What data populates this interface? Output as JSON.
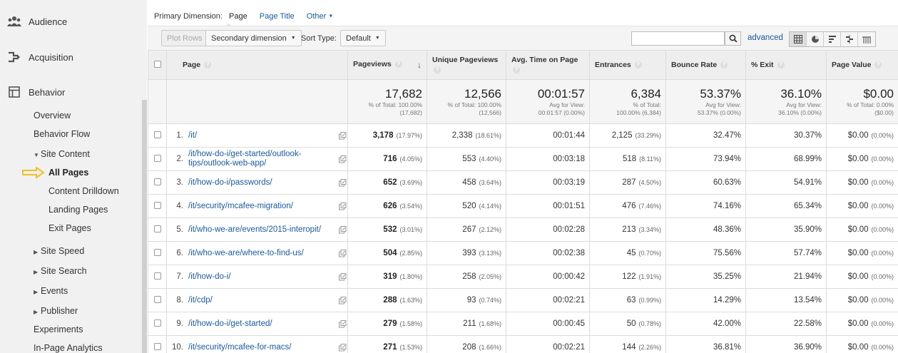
{
  "sidebar": {
    "audience": "Audience",
    "acquisition": "Acquisition",
    "behavior": "Behavior",
    "overview": "Overview",
    "behavior_flow": "Behavior Flow",
    "site_content": "Site Content",
    "all_pages": "All Pages",
    "content_drilldown": "Content Drilldown",
    "landing_pages": "Landing Pages",
    "exit_pages": "Exit Pages",
    "site_speed": "Site Speed",
    "site_search": "Site Search",
    "events": "Events",
    "publisher": "Publisher",
    "experiments": "Experiments",
    "in_page_analytics": "In-Page Analytics"
  },
  "dimension_bar": {
    "label": "Primary Dimension:",
    "current": "Page",
    "page_title": "Page Title",
    "other": "Other"
  },
  "toolbar": {
    "plot_rows": "Plot Rows",
    "secondary_dimension": "Secondary dimension",
    "sort_type_label": "Sort Type:",
    "sort_type_value": "Default",
    "search_value": "",
    "advanced": "advanced"
  },
  "table": {
    "headers": {
      "page": "Page",
      "pageviews": "Pageviews",
      "unique_pageviews": "Unique Pageviews",
      "avg_time": "Avg. Time on Page",
      "entrances": "Entrances",
      "bounce_rate": "Bounce Rate",
      "exit": "% Exit",
      "page_value": "Page Value"
    },
    "totals": {
      "pageviews": {
        "big": "17,682",
        "l1": "% of Total: 100.00%",
        "l2": "(17,682)"
      },
      "unique_pageviews": {
        "big": "12,566",
        "l1": "% of Total: 100.00%",
        "l2": "(12,566)"
      },
      "avg_time": {
        "big": "00:01:57",
        "l1": "Avg for View:",
        "l2": "00:01:57 (0.00%)"
      },
      "entrances": {
        "big": "6,384",
        "l1": "% of Total:",
        "l2": "100.00% (6,384)"
      },
      "bounce_rate": {
        "big": "53.37%",
        "l1": "Avg for View:",
        "l2": "53.37% (0.00%)"
      },
      "exit": {
        "big": "36.10%",
        "l1": "Avg for View:",
        "l2": "36.10% (0.00%)"
      },
      "page_value": {
        "big": "$0.00",
        "l1": "% of Total: 0.00%",
        "l2": "($0.00)"
      }
    },
    "rows": [
      {
        "rank": "1.",
        "page": "/it/",
        "pv": "3,178",
        "pv_pct": "(17.97%)",
        "upv": "2,338",
        "upv_pct": "(18.61%)",
        "time": "00:01:44",
        "ent": "2,125",
        "ent_pct": "(33.29%)",
        "bounce": "32.47%",
        "exit": "30.37%",
        "value": "$0.00",
        "value_pct": "(0.00%)"
      },
      {
        "rank": "2.",
        "page": "/it/how-do-i/get-started/outlook-tips/outlook-web-app/",
        "pv": "716",
        "pv_pct": "(4.05%)",
        "upv": "553",
        "upv_pct": "(4.40%)",
        "time": "00:03:18",
        "ent": "518",
        "ent_pct": "(8.11%)",
        "bounce": "73.94%",
        "exit": "68.99%",
        "value": "$0.00",
        "value_pct": "(0.00%)"
      },
      {
        "rank": "3.",
        "page": "/it/how-do-i/passwords/",
        "pv": "652",
        "pv_pct": "(3.69%)",
        "upv": "458",
        "upv_pct": "(3.64%)",
        "time": "00:03:19",
        "ent": "287",
        "ent_pct": "(4.50%)",
        "bounce": "60.63%",
        "exit": "54.91%",
        "value": "$0.00",
        "value_pct": "(0.00%)"
      },
      {
        "rank": "4.",
        "page": "/it/security/mcafee-migration/",
        "pv": "626",
        "pv_pct": "(3.54%)",
        "upv": "520",
        "upv_pct": "(4.14%)",
        "time": "00:01:51",
        "ent": "476",
        "ent_pct": "(7.46%)",
        "bounce": "74.16%",
        "exit": "65.34%",
        "value": "$0.00",
        "value_pct": "(0.00%)"
      },
      {
        "rank": "5.",
        "page": "/it/who-we-are/events/2015-interopit/",
        "pv": "532",
        "pv_pct": "(3.01%)",
        "upv": "267",
        "upv_pct": "(2.12%)",
        "time": "00:02:28",
        "ent": "213",
        "ent_pct": "(3.34%)",
        "bounce": "48.36%",
        "exit": "35.90%",
        "value": "$0.00",
        "value_pct": "(0.00%)"
      },
      {
        "rank": "6.",
        "page": "/it/who-we-are/where-to-find-us/",
        "pv": "504",
        "pv_pct": "(2.85%)",
        "upv": "393",
        "upv_pct": "(3.13%)",
        "time": "00:02:38",
        "ent": "45",
        "ent_pct": "(0.70%)",
        "bounce": "75.56%",
        "exit": "57.74%",
        "value": "$0.00",
        "value_pct": "(0.00%)"
      },
      {
        "rank": "7.",
        "page": "/it/how-do-i/",
        "pv": "319",
        "pv_pct": "(1.80%)",
        "upv": "258",
        "upv_pct": "(2.05%)",
        "time": "00:00:42",
        "ent": "122",
        "ent_pct": "(1.91%)",
        "bounce": "35.25%",
        "exit": "21.94%",
        "value": "$0.00",
        "value_pct": "(0.00%)"
      },
      {
        "rank": "8.",
        "page": "/it/cdp/",
        "pv": "288",
        "pv_pct": "(1.63%)",
        "upv": "93",
        "upv_pct": "(0.74%)",
        "time": "00:02:21",
        "ent": "63",
        "ent_pct": "(0.99%)",
        "bounce": "14.29%",
        "exit": "13.54%",
        "value": "$0.00",
        "value_pct": "(0.00%)"
      },
      {
        "rank": "9.",
        "page": "/it/how-do-i/get-started/",
        "pv": "279",
        "pv_pct": "(1.58%)",
        "upv": "211",
        "upv_pct": "(1.68%)",
        "time": "00:00:45",
        "ent": "50",
        "ent_pct": "(0.78%)",
        "bounce": "42.00%",
        "exit": "22.58%",
        "value": "$0.00",
        "value_pct": "(0.00%)"
      },
      {
        "rank": "10.",
        "page": "/it/security/mcafee-for-macs/",
        "pv": "271",
        "pv_pct": "(1.53%)",
        "upv": "208",
        "upv_pct": "(1.66%)",
        "time": "00:02:21",
        "ent": "144",
        "ent_pct": "(2.26%)",
        "bounce": "36.81%",
        "exit": "36.90%",
        "value": "$0.00",
        "value_pct": "(0.00%)"
      }
    ]
  },
  "colors": {
    "link": "#1a5aa0",
    "indicator_arrow": "#f0c020"
  }
}
